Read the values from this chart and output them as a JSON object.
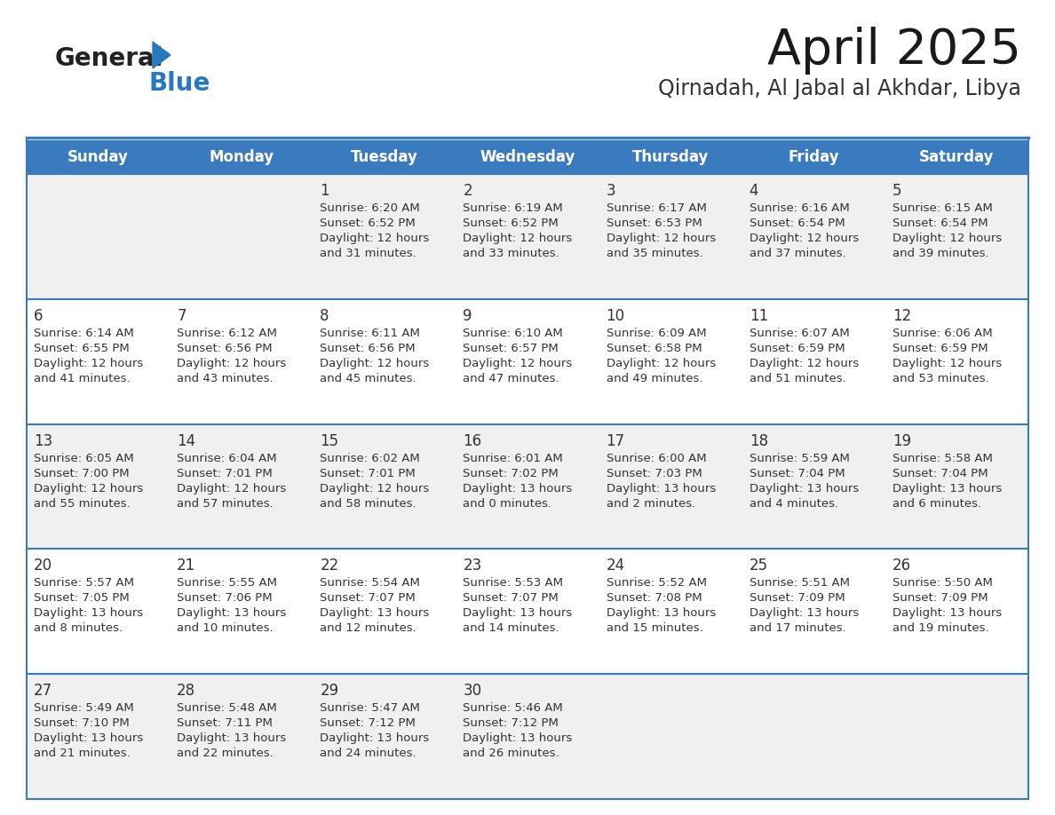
{
  "title": "April 2025",
  "subtitle": "Qirnadah, Al Jabal al Akhdar, Libya",
  "header_bg_color": "#3a7abf",
  "header_text_color": "#ffffff",
  "row_bg_odd": "#f0f0f0",
  "row_bg_even": "#ffffff",
  "border_color": "#3a7abf",
  "text_color": "#333333",
  "days_of_week": [
    "Sunday",
    "Monday",
    "Tuesday",
    "Wednesday",
    "Thursday",
    "Friday",
    "Saturday"
  ],
  "calendar": [
    [
      {
        "day": "",
        "sunrise": "",
        "sunset": "",
        "daylight": ""
      },
      {
        "day": "",
        "sunrise": "",
        "sunset": "",
        "daylight": ""
      },
      {
        "day": "1",
        "sunrise": "Sunrise: 6:20 AM",
        "sunset": "Sunset: 6:52 PM",
        "daylight": "Daylight: 12 hours\nand 31 minutes."
      },
      {
        "day": "2",
        "sunrise": "Sunrise: 6:19 AM",
        "sunset": "Sunset: 6:52 PM",
        "daylight": "Daylight: 12 hours\nand 33 minutes."
      },
      {
        "day": "3",
        "sunrise": "Sunrise: 6:17 AM",
        "sunset": "Sunset: 6:53 PM",
        "daylight": "Daylight: 12 hours\nand 35 minutes."
      },
      {
        "day": "4",
        "sunrise": "Sunrise: 6:16 AM",
        "sunset": "Sunset: 6:54 PM",
        "daylight": "Daylight: 12 hours\nand 37 minutes."
      },
      {
        "day": "5",
        "sunrise": "Sunrise: 6:15 AM",
        "sunset": "Sunset: 6:54 PM",
        "daylight": "Daylight: 12 hours\nand 39 minutes."
      }
    ],
    [
      {
        "day": "6",
        "sunrise": "Sunrise: 6:14 AM",
        "sunset": "Sunset: 6:55 PM",
        "daylight": "Daylight: 12 hours\nand 41 minutes."
      },
      {
        "day": "7",
        "sunrise": "Sunrise: 6:12 AM",
        "sunset": "Sunset: 6:56 PM",
        "daylight": "Daylight: 12 hours\nand 43 minutes."
      },
      {
        "day": "8",
        "sunrise": "Sunrise: 6:11 AM",
        "sunset": "Sunset: 6:56 PM",
        "daylight": "Daylight: 12 hours\nand 45 minutes."
      },
      {
        "day": "9",
        "sunrise": "Sunrise: 6:10 AM",
        "sunset": "Sunset: 6:57 PM",
        "daylight": "Daylight: 12 hours\nand 47 minutes."
      },
      {
        "day": "10",
        "sunrise": "Sunrise: 6:09 AM",
        "sunset": "Sunset: 6:58 PM",
        "daylight": "Daylight: 12 hours\nand 49 minutes."
      },
      {
        "day": "11",
        "sunrise": "Sunrise: 6:07 AM",
        "sunset": "Sunset: 6:59 PM",
        "daylight": "Daylight: 12 hours\nand 51 minutes."
      },
      {
        "day": "12",
        "sunrise": "Sunrise: 6:06 AM",
        "sunset": "Sunset: 6:59 PM",
        "daylight": "Daylight: 12 hours\nand 53 minutes."
      }
    ],
    [
      {
        "day": "13",
        "sunrise": "Sunrise: 6:05 AM",
        "sunset": "Sunset: 7:00 PM",
        "daylight": "Daylight: 12 hours\nand 55 minutes."
      },
      {
        "day": "14",
        "sunrise": "Sunrise: 6:04 AM",
        "sunset": "Sunset: 7:01 PM",
        "daylight": "Daylight: 12 hours\nand 57 minutes."
      },
      {
        "day": "15",
        "sunrise": "Sunrise: 6:02 AM",
        "sunset": "Sunset: 7:01 PM",
        "daylight": "Daylight: 12 hours\nand 58 minutes."
      },
      {
        "day": "16",
        "sunrise": "Sunrise: 6:01 AM",
        "sunset": "Sunset: 7:02 PM",
        "daylight": "Daylight: 13 hours\nand 0 minutes."
      },
      {
        "day": "17",
        "sunrise": "Sunrise: 6:00 AM",
        "sunset": "Sunset: 7:03 PM",
        "daylight": "Daylight: 13 hours\nand 2 minutes."
      },
      {
        "day": "18",
        "sunrise": "Sunrise: 5:59 AM",
        "sunset": "Sunset: 7:04 PM",
        "daylight": "Daylight: 13 hours\nand 4 minutes."
      },
      {
        "day": "19",
        "sunrise": "Sunrise: 5:58 AM",
        "sunset": "Sunset: 7:04 PM",
        "daylight": "Daylight: 13 hours\nand 6 minutes."
      }
    ],
    [
      {
        "day": "20",
        "sunrise": "Sunrise: 5:57 AM",
        "sunset": "Sunset: 7:05 PM",
        "daylight": "Daylight: 13 hours\nand 8 minutes."
      },
      {
        "day": "21",
        "sunrise": "Sunrise: 5:55 AM",
        "sunset": "Sunset: 7:06 PM",
        "daylight": "Daylight: 13 hours\nand 10 minutes."
      },
      {
        "day": "22",
        "sunrise": "Sunrise: 5:54 AM",
        "sunset": "Sunset: 7:07 PM",
        "daylight": "Daylight: 13 hours\nand 12 minutes."
      },
      {
        "day": "23",
        "sunrise": "Sunrise: 5:53 AM",
        "sunset": "Sunset: 7:07 PM",
        "daylight": "Daylight: 13 hours\nand 14 minutes."
      },
      {
        "day": "24",
        "sunrise": "Sunrise: 5:52 AM",
        "sunset": "Sunset: 7:08 PM",
        "daylight": "Daylight: 13 hours\nand 15 minutes."
      },
      {
        "day": "25",
        "sunrise": "Sunrise: 5:51 AM",
        "sunset": "Sunset: 7:09 PM",
        "daylight": "Daylight: 13 hours\nand 17 minutes."
      },
      {
        "day": "26",
        "sunrise": "Sunrise: 5:50 AM",
        "sunset": "Sunset: 7:09 PM",
        "daylight": "Daylight: 13 hours\nand 19 minutes."
      }
    ],
    [
      {
        "day": "27",
        "sunrise": "Sunrise: 5:49 AM",
        "sunset": "Sunset: 7:10 PM",
        "daylight": "Daylight: 13 hours\nand 21 minutes."
      },
      {
        "day": "28",
        "sunrise": "Sunrise: 5:48 AM",
        "sunset": "Sunset: 7:11 PM",
        "daylight": "Daylight: 13 hours\nand 22 minutes."
      },
      {
        "day": "29",
        "sunrise": "Sunrise: 5:47 AM",
        "sunset": "Sunset: 7:12 PM",
        "daylight": "Daylight: 13 hours\nand 24 minutes."
      },
      {
        "day": "30",
        "sunrise": "Sunrise: 5:46 AM",
        "sunset": "Sunset: 7:12 PM",
        "daylight": "Daylight: 13 hours\nand 26 minutes."
      },
      {
        "day": "",
        "sunrise": "",
        "sunset": "",
        "daylight": ""
      },
      {
        "day": "",
        "sunrise": "",
        "sunset": "",
        "daylight": ""
      },
      {
        "day": "",
        "sunrise": "",
        "sunset": "",
        "daylight": ""
      }
    ]
  ],
  "logo_general_color": "#222222",
  "logo_blue_color": "#2878c0",
  "logo_triangle_color": "#2878c0"
}
